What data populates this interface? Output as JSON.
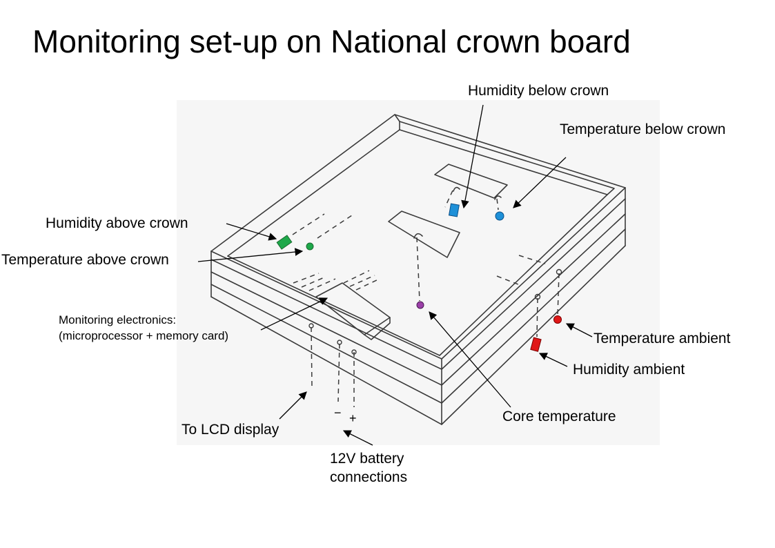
{
  "title": "Monitoring set-up on National crown board",
  "labels": {
    "humidity_below": "Humidity below crown",
    "temperature_below": "Temperature  below crown",
    "humidity_above": "Humidity above crown",
    "temperature_above": "Temperature above crown",
    "electronics_line1": "Monitoring electronics:",
    "electronics_line2": "(microprocessor + memory card)",
    "temperature_ambient": "Temperature ambient",
    "humidity_ambient": "Humidity ambient",
    "core_temperature": "Core temperature",
    "lcd": "To LCD display",
    "battery_line1": "12V battery",
    "battery_line2": "connections",
    "minus": "−",
    "plus": "+"
  },
  "colors": {
    "humidity_above": "#1ea84a",
    "temperature_above": "#1ea84a",
    "humidity_below": "#1e90d8",
    "temperature_below": "#1e90d8",
    "core": "#9b3fa8",
    "ambient": "#e01818",
    "pencil": "#3a3a3a"
  }
}
